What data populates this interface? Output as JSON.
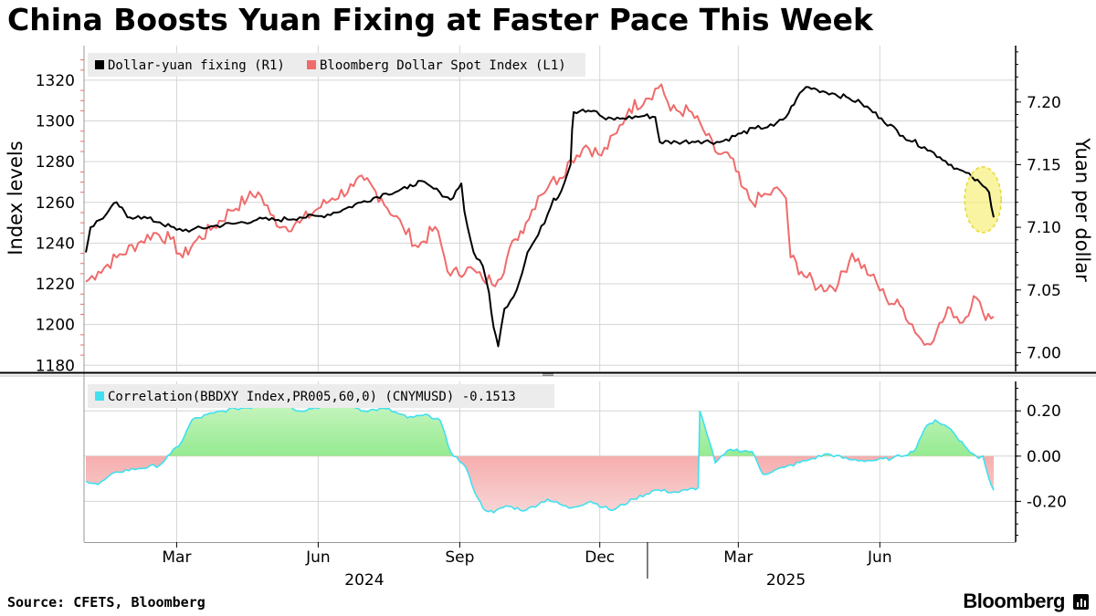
{
  "title": "China Boosts Yuan Fixing at Faster Pace This Week",
  "source": "Source: CFETS, Bloomberg",
  "brand": "Bloomberg",
  "colors": {
    "fixing": "#000000",
    "dxy": "#f06b6b",
    "pos_fill": "#6ee66e",
    "neg_fill": "#f28a8a",
    "corr_line": "#40e0f0",
    "highlight": "#f5f07a"
  },
  "chart_data": [
    {
      "type": "line",
      "legend_placement": "top-left",
      "grid": true,
      "ylabel_left": "Index levels",
      "ylabel_right": "Yuan per dollar",
      "ylim_left": [
        1177,
        1337
      ],
      "ylim_right": [
        6.985,
        7.245
      ],
      "yticks_left": [
        "1180",
        "1200",
        "1220",
        "1240",
        "1260",
        "1280",
        "1300",
        "1320"
      ],
      "yticks_right": [
        "7.00",
        "7.05",
        "7.10",
        "7.15",
        "7.20"
      ],
      "xticks": [
        {
          "label": "Mar",
          "x": "2024-03-01"
        },
        {
          "label": "Jun",
          "x": "2024-06-01"
        },
        {
          "label": "Sep",
          "x": "2024-09-01"
        },
        {
          "label": "Dec",
          "x": "2024-12-01"
        },
        {
          "label": "Mar",
          "x": "2025-03-01"
        },
        {
          "label": "Jun",
          "x": "2025-06-01"
        }
      ],
      "year_labels": [
        {
          "label": "2024",
          "x": "2024-07-01"
        },
        {
          "label": "2025",
          "x": "2025-04-01"
        }
      ],
      "x_range": [
        "2024-01-02",
        "2025-08-14"
      ],
      "series": [
        {
          "name": "Dollar-yuan fixing (R1)",
          "axis": "right",
          "points": [
            [
              "2024-01-02",
              7.08
            ],
            [
              "2024-01-05",
              7.1
            ],
            [
              "2024-01-15",
              7.11
            ],
            [
              "2024-01-22",
              7.12
            ],
            [
              "2024-01-29",
              7.108
            ],
            [
              "2024-02-05",
              7.109
            ],
            [
              "2024-02-19",
              7.104
            ],
            [
              "2024-03-01",
              7.098
            ],
            [
              "2024-03-11",
              7.098
            ],
            [
              "2024-03-25",
              7.101
            ],
            [
              "2024-04-08",
              7.103
            ],
            [
              "2024-04-22",
              7.106
            ],
            [
              "2024-05-06",
              7.106
            ],
            [
              "2024-05-20",
              7.108
            ],
            [
              "2024-06-03",
              7.109
            ],
            [
              "2024-06-17",
              7.114
            ],
            [
              "2024-07-01",
              7.121
            ],
            [
              "2024-07-15",
              7.127
            ],
            [
              "2024-07-29",
              7.131
            ],
            [
              "2024-08-05",
              7.137
            ],
            [
              "2024-08-19",
              7.128
            ],
            [
              "2024-08-26",
              7.122
            ],
            [
              "2024-09-02",
              7.135
            ],
            [
              "2024-09-04",
              7.113
            ],
            [
              "2024-09-08",
              7.09
            ],
            [
              "2024-09-10",
              7.08
            ],
            [
              "2024-09-12",
              7.075
            ],
            [
              "2024-09-16",
              7.069
            ],
            [
              "2024-09-20",
              7.048
            ],
            [
              "2024-09-23",
              7.02
            ],
            [
              "2024-09-26",
              7.005
            ],
            [
              "2024-09-30",
              7.035
            ],
            [
              "2024-10-08",
              7.05
            ],
            [
              "2024-10-15",
              7.08
            ],
            [
              "2024-10-22",
              7.094
            ],
            [
              "2024-10-28",
              7.11
            ],
            [
              "2024-11-01",
              7.123
            ],
            [
              "2024-11-04",
              7.124
            ],
            [
              "2024-11-12",
              7.15
            ],
            [
              "2024-11-13",
              7.178
            ],
            [
              "2024-11-14",
              7.192
            ],
            [
              "2024-11-20",
              7.194
            ],
            [
              "2024-11-27",
              7.193
            ],
            [
              "2024-12-05",
              7.186
            ],
            [
              "2024-12-16",
              7.187
            ],
            [
              "2024-12-30",
              7.189
            ],
            [
              "2025-01-06",
              7.188
            ],
            [
              "2025-01-09",
              7.168
            ],
            [
              "2025-01-20",
              7.168
            ],
            [
              "2025-02-03",
              7.169
            ],
            [
              "2025-02-17",
              7.168
            ],
            [
              "2025-03-03",
              7.175
            ],
            [
              "2025-03-12",
              7.179
            ],
            [
              "2025-03-24",
              7.181
            ],
            [
              "2025-04-01",
              7.188
            ],
            [
              "2025-04-08",
              7.203
            ],
            [
              "2025-04-14",
              7.212
            ],
            [
              "2025-04-21",
              7.21
            ],
            [
              "2025-05-01",
              7.207
            ],
            [
              "2025-05-12",
              7.203
            ],
            [
              "2025-05-20",
              7.199
            ],
            [
              "2025-06-02",
              7.187
            ],
            [
              "2025-06-16",
              7.173
            ],
            [
              "2025-06-30",
              7.164
            ],
            [
              "2025-07-10",
              7.156
            ],
            [
              "2025-07-21",
              7.147
            ],
            [
              "2025-07-31",
              7.14
            ],
            [
              "2025-08-07",
              7.133
            ],
            [
              "2025-08-11",
              7.128
            ],
            [
              "2025-08-14",
              7.108
            ]
          ]
        },
        {
          "name": "Bloomberg Dollar Spot Index (L1)",
          "axis": "left",
          "points": [
            [
              "2024-01-02",
              1221
            ],
            [
              "2024-01-10",
              1226
            ],
            [
              "2024-01-22",
              1233
            ],
            [
              "2024-02-05",
              1240
            ],
            [
              "2024-02-15",
              1245
            ],
            [
              "2024-02-26",
              1242
            ],
            [
              "2024-03-05",
              1233
            ],
            [
              "2024-03-12",
              1240
            ],
            [
              "2024-03-25",
              1248
            ],
            [
              "2024-04-05",
              1256
            ],
            [
              "2024-04-16",
              1262
            ],
            [
              "2024-04-23",
              1265
            ],
            [
              "2024-05-01",
              1254
            ],
            [
              "2024-05-09",
              1248
            ],
            [
              "2024-05-20",
              1250
            ],
            [
              "2024-05-30",
              1256
            ],
            [
              "2024-06-10",
              1262
            ],
            [
              "2024-06-24",
              1268
            ],
            [
              "2024-07-01",
              1271
            ],
            [
              "2024-07-12",
              1262
            ],
            [
              "2024-07-26",
              1248
            ],
            [
              "2024-08-05",
              1238
            ],
            [
              "2024-08-16",
              1248
            ],
            [
              "2024-08-26",
              1224
            ],
            [
              "2024-09-06",
              1228
            ],
            [
              "2024-09-16",
              1222
            ],
            [
              "2024-09-26",
              1222
            ],
            [
              "2024-10-07",
              1242
            ],
            [
              "2024-10-14",
              1250
            ],
            [
              "2024-10-22",
              1263
            ],
            [
              "2024-10-30",
              1270
            ],
            [
              "2024-11-05",
              1272
            ],
            [
              "2024-11-12",
              1281
            ],
            [
              "2024-11-22",
              1288
            ],
            [
              "2024-12-02",
              1283
            ],
            [
              "2024-12-12",
              1294
            ],
            [
              "2024-12-20",
              1306
            ],
            [
              "2024-12-31",
              1311
            ],
            [
              "2025-01-10",
              1318
            ],
            [
              "2025-01-16",
              1305
            ],
            [
              "2025-01-28",
              1305
            ],
            [
              "2025-02-06",
              1296
            ],
            [
              "2025-02-14",
              1285
            ],
            [
              "2025-02-24",
              1282
            ],
            [
              "2025-03-03",
              1268
            ],
            [
              "2025-03-10",
              1260
            ],
            [
              "2025-03-20",
              1264
            ],
            [
              "2025-03-28",
              1266
            ],
            [
              "2025-04-01",
              1262
            ],
            [
              "2025-04-04",
              1233
            ],
            [
              "2025-04-11",
              1226
            ],
            [
              "2025-04-22",
              1218
            ],
            [
              "2025-05-05",
              1220
            ],
            [
              "2025-05-14",
              1235
            ],
            [
              "2025-05-26",
              1224
            ],
            [
              "2025-06-05",
              1213
            ],
            [
              "2025-06-16",
              1208
            ],
            [
              "2025-06-30",
              1190
            ],
            [
              "2025-07-08",
              1197
            ],
            [
              "2025-07-17",
              1208
            ],
            [
              "2025-07-25",
              1201
            ],
            [
              "2025-08-01",
              1214
            ],
            [
              "2025-08-07",
              1206
            ],
            [
              "2025-08-14",
              1204
            ]
          ]
        }
      ]
    },
    {
      "type": "area",
      "legend_placement": "top-left",
      "grid": true,
      "ylim": [
        -0.38,
        0.33
      ],
      "yticks": [
        "-0.20",
        "0.00",
        "0.20"
      ],
      "series": [
        {
          "name": "Correlation(BBDXY Index,PR005,60,0) (CNYMUSD) -0.1513",
          "points": [
            [
              "2024-01-02",
              -0.11
            ],
            [
              "2024-01-10",
              -0.125
            ],
            [
              "2024-01-22",
              -0.07
            ],
            [
              "2024-02-05",
              -0.055
            ],
            [
              "2024-02-19",
              -0.04
            ],
            [
              "2024-02-26",
              0.01
            ],
            [
              "2024-03-04",
              0.06
            ],
            [
              "2024-03-11",
              0.16
            ],
            [
              "2024-03-25",
              0.19
            ],
            [
              "2024-04-08",
              0.21
            ],
            [
              "2024-04-22",
              0.22
            ],
            [
              "2024-05-06",
              0.24
            ],
            [
              "2024-05-20",
              0.2
            ],
            [
              "2024-06-03",
              0.22
            ],
            [
              "2024-06-17",
              0.24
            ],
            [
              "2024-07-01",
              0.2
            ],
            [
              "2024-07-15",
              0.21
            ],
            [
              "2024-07-29",
              0.17
            ],
            [
              "2024-08-12",
              0.18
            ],
            [
              "2024-08-19",
              0.16
            ],
            [
              "2024-08-26",
              0.02
            ],
            [
              "2024-09-05",
              -0.05
            ],
            [
              "2024-09-09",
              -0.13
            ],
            [
              "2024-09-16",
              -0.23
            ],
            [
              "2024-09-23",
              -0.25
            ],
            [
              "2024-10-01",
              -0.22
            ],
            [
              "2024-10-14",
              -0.24
            ],
            [
              "2024-10-28",
              -0.19
            ],
            [
              "2024-11-11",
              -0.23
            ],
            [
              "2024-11-25",
              -0.2
            ],
            [
              "2024-12-09",
              -0.24
            ],
            [
              "2024-12-23",
              -0.19
            ],
            [
              "2025-01-06",
              -0.15
            ],
            [
              "2025-01-20",
              -0.16
            ],
            [
              "2025-01-27",
              -0.15
            ],
            [
              "2025-02-03",
              -0.14
            ],
            [
              "2025-02-04",
              0.2
            ],
            [
              "2025-02-10",
              0.07
            ],
            [
              "2025-02-14",
              -0.03
            ],
            [
              "2025-02-24",
              0.03
            ],
            [
              "2025-03-10",
              0.02
            ],
            [
              "2025-03-17",
              -0.08
            ],
            [
              "2025-03-31",
              -0.05
            ],
            [
              "2025-04-14",
              -0.02
            ],
            [
              "2025-04-28",
              0.01
            ],
            [
              "2025-05-12",
              -0.015
            ],
            [
              "2025-05-26",
              -0.02
            ],
            [
              "2025-06-09",
              -0.01
            ],
            [
              "2025-06-23",
              0.02
            ],
            [
              "2025-06-30",
              0.12
            ],
            [
              "2025-07-07",
              0.16
            ],
            [
              "2025-07-17",
              0.12
            ],
            [
              "2025-07-28",
              0.03
            ],
            [
              "2025-08-04",
              -0.01
            ],
            [
              "2025-08-07",
              0.0
            ],
            [
              "2025-08-11",
              -0.1
            ],
            [
              "2025-08-14",
              -0.1513
            ]
          ]
        }
      ]
    }
  ]
}
